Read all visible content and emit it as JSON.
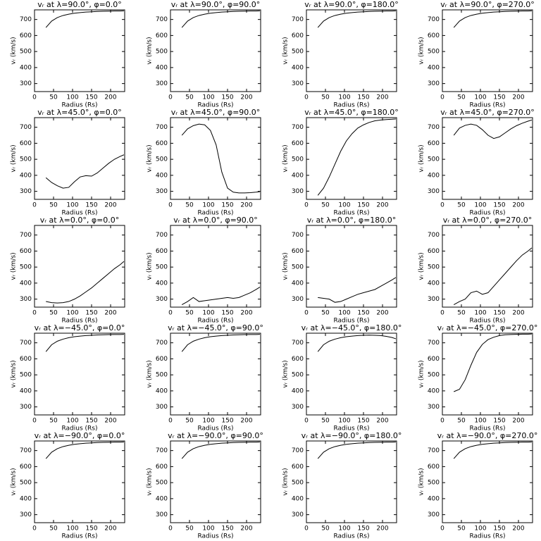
{
  "chart_data": [
    {
      "type": "line",
      "title": "vᵣ at λ=90.0°, φ=0.0°",
      "xlabel": "Radius (Rs)",
      "ylabel": "vᵣ (km/s)",
      "color": "#000000",
      "x": [
        30,
        45,
        60,
        75,
        90,
        105,
        120,
        135,
        150,
        165,
        180,
        195,
        210,
        225,
        235
      ],
      "values": [
        650,
        690,
        712,
        725,
        733,
        739,
        743,
        746,
        748,
        750,
        751,
        752,
        753,
        753,
        754
      ],
      "xlim": [
        0,
        237
      ],
      "ylim": [
        250,
        760
      ],
      "xticks": [
        0,
        50,
        100,
        150,
        200
      ],
      "yticks": [
        300,
        400,
        500,
        600,
        700
      ]
    },
    {
      "type": "line",
      "title": "vᵣ at λ=90.0°, φ=90.0°",
      "xlabel": "Radius (Rs)",
      "ylabel": "vᵣ (km/s)",
      "color": "#000000",
      "x": [
        30,
        45,
        60,
        75,
        90,
        105,
        120,
        135,
        150,
        165,
        180,
        195,
        210,
        225,
        235
      ],
      "values": [
        650,
        690,
        712,
        725,
        733,
        739,
        743,
        746,
        748,
        750,
        751,
        752,
        753,
        753,
        754
      ],
      "xlim": [
        0,
        237
      ],
      "ylim": [
        250,
        760
      ],
      "xticks": [
        0,
        50,
        100,
        150,
        200
      ],
      "yticks": [
        300,
        400,
        500,
        600,
        700
      ]
    },
    {
      "type": "line",
      "title": "vᵣ at λ=90.0°, φ=180.0°",
      "xlabel": "Radius (Rs)",
      "ylabel": "vᵣ (km/s)",
      "color": "#000000",
      "x": [
        30,
        45,
        60,
        75,
        90,
        105,
        120,
        135,
        150,
        165,
        180,
        195,
        210,
        225,
        235
      ],
      "values": [
        650,
        690,
        712,
        725,
        733,
        739,
        743,
        746,
        748,
        750,
        751,
        752,
        753,
        753,
        754
      ],
      "xlim": [
        0,
        237
      ],
      "ylim": [
        250,
        760
      ],
      "xticks": [
        0,
        50,
        100,
        150,
        200
      ],
      "yticks": [
        300,
        400,
        500,
        600,
        700
      ]
    },
    {
      "type": "line",
      "title": "vᵣ at λ=90.0°, φ=270.0°",
      "xlabel": "Radius (Rs)",
      "ylabel": "vᵣ (km/s)",
      "color": "#000000",
      "x": [
        30,
        45,
        60,
        75,
        90,
        105,
        120,
        135,
        150,
        165,
        180,
        195,
        210,
        225,
        235
      ],
      "values": [
        650,
        690,
        712,
        725,
        733,
        739,
        743,
        746,
        748,
        750,
        751,
        752,
        753,
        753,
        754
      ],
      "xlim": [
        0,
        237
      ],
      "ylim": [
        250,
        760
      ],
      "xticks": [
        0,
        50,
        100,
        150,
        200
      ],
      "yticks": [
        300,
        400,
        500,
        600,
        700
      ]
    },
    {
      "type": "line",
      "title": "vᵣ at λ=45.0°, φ=0.0°",
      "xlabel": "Radius (Rs)",
      "ylabel": "vᵣ (km/s)",
      "color": "#000000",
      "x": [
        30,
        45,
        60,
        75,
        90,
        105,
        120,
        135,
        150,
        165,
        180,
        195,
        210,
        225,
        235
      ],
      "values": [
        385,
        355,
        335,
        320,
        325,
        360,
        390,
        398,
        395,
        415,
        445,
        475,
        500,
        518,
        528
      ],
      "xlim": [
        0,
        237
      ],
      "ylim": [
        250,
        760
      ],
      "xticks": [
        0,
        50,
        100,
        150,
        200
      ],
      "yticks": [
        300,
        400,
        500,
        600,
        700
      ]
    },
    {
      "type": "line",
      "title": "vᵣ at λ=45.0°, φ=90.0°",
      "xlabel": "Radius (Rs)",
      "ylabel": "vᵣ (km/s)",
      "color": "#000000",
      "x": [
        30,
        45,
        60,
        75,
        90,
        105,
        120,
        135,
        150,
        165,
        180,
        195,
        210,
        225,
        235
      ],
      "values": [
        650,
        690,
        710,
        720,
        715,
        680,
        590,
        420,
        320,
        295,
        290,
        290,
        292,
        295,
        298
      ],
      "xlim": [
        0,
        237
      ],
      "ylim": [
        250,
        760
      ],
      "xticks": [
        0,
        50,
        100,
        150,
        200
      ],
      "yticks": [
        300,
        400,
        500,
        600,
        700
      ]
    },
    {
      "type": "line",
      "title": "vᵣ at λ=45.0°, φ=180.0°",
      "xlabel": "Radius (Rs)",
      "ylabel": "vᵣ (km/s)",
      "color": "#000000",
      "x": [
        30,
        45,
        60,
        75,
        90,
        105,
        120,
        135,
        150,
        165,
        180,
        195,
        210,
        225,
        235
      ],
      "values": [
        275,
        320,
        390,
        470,
        550,
        615,
        660,
        695,
        715,
        730,
        740,
        745,
        748,
        750,
        752
      ],
      "xlim": [
        0,
        237
      ],
      "ylim": [
        250,
        760
      ],
      "xticks": [
        0,
        50,
        100,
        150,
        200
      ],
      "yticks": [
        300,
        400,
        500,
        600,
        700
      ]
    },
    {
      "type": "line",
      "title": "vᵣ at λ=45.0°, φ=270.0°",
      "xlabel": "Radius (Rs)",
      "ylabel": "vᵣ (km/s)",
      "color": "#000000",
      "x": [
        30,
        45,
        60,
        75,
        90,
        105,
        120,
        135,
        150,
        165,
        180,
        195,
        210,
        225,
        235
      ],
      "values": [
        650,
        695,
        712,
        720,
        712,
        685,
        650,
        630,
        640,
        665,
        690,
        710,
        725,
        738,
        745
      ],
      "xlim": [
        0,
        237
      ],
      "ylim": [
        250,
        760
      ],
      "xticks": [
        0,
        50,
        100,
        150,
        200
      ],
      "yticks": [
        300,
        400,
        500,
        600,
        700
      ]
    },
    {
      "type": "line",
      "title": "vᵣ at λ=0.0°, φ=0.0°",
      "xlabel": "Radius (Rs)",
      "ylabel": "vᵣ (km/s)",
      "color": "#000000",
      "x": [
        30,
        45,
        60,
        75,
        90,
        105,
        120,
        135,
        150,
        165,
        180,
        195,
        210,
        225,
        235
      ],
      "values": [
        285,
        278,
        276,
        278,
        285,
        300,
        320,
        345,
        370,
        400,
        430,
        460,
        490,
        515,
        535
      ],
      "xlim": [
        0,
        237
      ],
      "ylim": [
        250,
        760
      ],
      "xticks": [
        0,
        50,
        100,
        150,
        200
      ],
      "yticks": [
        300,
        400,
        500,
        600,
        700
      ]
    },
    {
      "type": "line",
      "title": "vᵣ at λ=0.0°, φ=90.0°",
      "xlabel": "Radius (Rs)",
      "ylabel": "vᵣ (km/s)",
      "color": "#000000",
      "x": [
        30,
        45,
        60,
        75,
        90,
        105,
        120,
        135,
        150,
        165,
        180,
        195,
        210,
        225,
        235
      ],
      "values": [
        265,
        285,
        310,
        285,
        290,
        295,
        300,
        305,
        310,
        305,
        310,
        325,
        340,
        360,
        375
      ],
      "xlim": [
        0,
        237
      ],
      "ylim": [
        250,
        760
      ],
      "xticks": [
        0,
        50,
        100,
        150,
        200
      ],
      "yticks": [
        300,
        400,
        500,
        600,
        700
      ]
    },
    {
      "type": "line",
      "title": "vᵣ at λ=0.0°, φ=180.0°",
      "xlabel": "Radius (Rs)",
      "ylabel": "vᵣ (km/s)",
      "color": "#000000",
      "x": [
        30,
        45,
        60,
        75,
        90,
        105,
        120,
        135,
        150,
        165,
        180,
        195,
        210,
        225,
        235
      ],
      "values": [
        310,
        305,
        300,
        280,
        285,
        300,
        315,
        330,
        340,
        350,
        360,
        380,
        400,
        420,
        435
      ],
      "xlim": [
        0,
        237
      ],
      "ylim": [
        250,
        760
      ],
      "xticks": [
        0,
        50,
        100,
        150,
        200
      ],
      "yticks": [
        300,
        400,
        500,
        600,
        700
      ]
    },
    {
      "type": "line",
      "title": "vᵣ at λ=0.0°, φ=270.0°",
      "xlabel": "Radius (Rs)",
      "ylabel": "vᵣ (km/s)",
      "color": "#000000",
      "x": [
        30,
        45,
        60,
        75,
        90,
        105,
        120,
        135,
        150,
        165,
        180,
        195,
        210,
        225,
        235
      ],
      "values": [
        265,
        285,
        300,
        340,
        350,
        330,
        340,
        380,
        420,
        460,
        500,
        540,
        575,
        600,
        620
      ],
      "xlim": [
        0,
        237
      ],
      "ylim": [
        250,
        760
      ],
      "xticks": [
        0,
        50,
        100,
        150,
        200
      ],
      "yticks": [
        300,
        400,
        500,
        600,
        700
      ]
    },
    {
      "type": "line",
      "title": "vᵣ at λ=−45.0°, φ=0.0°",
      "xlabel": "Radius (Rs)",
      "ylabel": "vᵣ (km/s)",
      "color": "#000000",
      "x": [
        30,
        45,
        60,
        75,
        90,
        105,
        120,
        135,
        150,
        165,
        180,
        195,
        210,
        225,
        235
      ],
      "values": [
        645,
        688,
        710,
        723,
        732,
        738,
        742,
        745,
        747,
        749,
        750,
        751,
        752,
        752,
        753
      ],
      "xlim": [
        0,
        237
      ],
      "ylim": [
        250,
        760
      ],
      "xticks": [
        0,
        50,
        100,
        150,
        200
      ],
      "yticks": [
        300,
        400,
        500,
        600,
        700
      ]
    },
    {
      "type": "line",
      "title": "vᵣ at λ=−45.0°, φ=90.0°",
      "xlabel": "Radius (Rs)",
      "ylabel": "vᵣ (km/s)",
      "color": "#000000",
      "x": [
        30,
        45,
        60,
        75,
        90,
        105,
        120,
        135,
        150,
        165,
        180,
        195,
        210,
        225,
        235
      ],
      "values": [
        645,
        688,
        710,
        723,
        732,
        738,
        742,
        745,
        747,
        749,
        750,
        751,
        752,
        752,
        753
      ],
      "xlim": [
        0,
        237
      ],
      "ylim": [
        250,
        760
      ],
      "xticks": [
        0,
        50,
        100,
        150,
        200
      ],
      "yticks": [
        300,
        400,
        500,
        600,
        700
      ]
    },
    {
      "type": "line",
      "title": "vᵣ at λ=−45.0°, φ=180.0°",
      "xlabel": "Radius (Rs)",
      "ylabel": "vᵣ (km/s)",
      "color": "#000000",
      "x": [
        30,
        45,
        60,
        75,
        90,
        105,
        120,
        135,
        150,
        165,
        180,
        195,
        210,
        225,
        235
      ],
      "values": [
        645,
        688,
        710,
        723,
        732,
        738,
        742,
        745,
        747,
        748,
        747,
        745,
        740,
        733,
        725
      ],
      "xlim": [
        0,
        237
      ],
      "ylim": [
        250,
        760
      ],
      "xticks": [
        0,
        50,
        100,
        150,
        200
      ],
      "yticks": [
        300,
        400,
        500,
        600,
        700
      ]
    },
    {
      "type": "line",
      "title": "vᵣ at λ=−45.0°, φ=270.0°",
      "xlabel": "Radius (Rs)",
      "ylabel": "vᵣ (km/s)",
      "color": "#000000",
      "x": [
        30,
        45,
        60,
        75,
        90,
        105,
        120,
        135,
        150,
        165,
        180,
        195,
        210,
        225,
        235
      ],
      "values": [
        395,
        410,
        470,
        560,
        640,
        690,
        720,
        735,
        745,
        750,
        752,
        753,
        754,
        754,
        755
      ],
      "xlim": [
        0,
        237
      ],
      "ylim": [
        250,
        760
      ],
      "xticks": [
        0,
        50,
        100,
        150,
        200
      ],
      "yticks": [
        300,
        400,
        500,
        600,
        700
      ]
    },
    {
      "type": "line",
      "title": "vᵣ at λ=−90.0°, φ=0.0°",
      "xlabel": "Radius (Rs)",
      "ylabel": "vᵣ (km/s)",
      "color": "#000000",
      "x": [
        30,
        45,
        60,
        75,
        90,
        105,
        120,
        135,
        150,
        165,
        180,
        195,
        210,
        225,
        235
      ],
      "values": [
        650,
        690,
        712,
        725,
        733,
        739,
        743,
        746,
        748,
        750,
        751,
        752,
        753,
        753,
        754
      ],
      "xlim": [
        0,
        237
      ],
      "ylim": [
        250,
        760
      ],
      "xticks": [
        0,
        50,
        100,
        150,
        200
      ],
      "yticks": [
        300,
        400,
        500,
        600,
        700
      ]
    },
    {
      "type": "line",
      "title": "vᵣ at λ=−90.0°, φ=90.0°",
      "xlabel": "Radius (Rs)",
      "ylabel": "vᵣ (km/s)",
      "color": "#000000",
      "x": [
        30,
        45,
        60,
        75,
        90,
        105,
        120,
        135,
        150,
        165,
        180,
        195,
        210,
        225,
        235
      ],
      "values": [
        650,
        690,
        712,
        725,
        733,
        739,
        743,
        746,
        748,
        750,
        751,
        752,
        753,
        753,
        754
      ],
      "xlim": [
        0,
        237
      ],
      "ylim": [
        250,
        760
      ],
      "xticks": [
        0,
        50,
        100,
        150,
        200
      ],
      "yticks": [
        300,
        400,
        500,
        600,
        700
      ]
    },
    {
      "type": "line",
      "title": "vᵣ at λ=−90.0°, φ=180.0°",
      "xlabel": "Radius (Rs)",
      "ylabel": "vᵣ (km/s)",
      "color": "#000000",
      "x": [
        30,
        45,
        60,
        75,
        90,
        105,
        120,
        135,
        150,
        165,
        180,
        195,
        210,
        225,
        235
      ],
      "values": [
        650,
        690,
        712,
        725,
        733,
        739,
        743,
        746,
        748,
        750,
        751,
        752,
        753,
        753,
        754
      ],
      "xlim": [
        0,
        237
      ],
      "ylim": [
        250,
        760
      ],
      "xticks": [
        0,
        50,
        100,
        150,
        200
      ],
      "yticks": [
        300,
        400,
        500,
        600,
        700
      ]
    },
    {
      "type": "line",
      "title": "vᵣ at λ=−90.0°, φ=270.0°",
      "xlabel": "Radius (Rs)",
      "ylabel": "vᵣ (km/s)",
      "color": "#000000",
      "x": [
        30,
        45,
        60,
        75,
        90,
        105,
        120,
        135,
        150,
        165,
        180,
        195,
        210,
        225,
        235
      ],
      "values": [
        650,
        690,
        712,
        725,
        733,
        739,
        743,
        746,
        748,
        750,
        751,
        752,
        753,
        753,
        754
      ],
      "xlim": [
        0,
        237
      ],
      "ylim": [
        250,
        760
      ],
      "xticks": [
        0,
        50,
        100,
        150,
        200
      ],
      "yticks": [
        300,
        400,
        500,
        600,
        700
      ]
    }
  ]
}
